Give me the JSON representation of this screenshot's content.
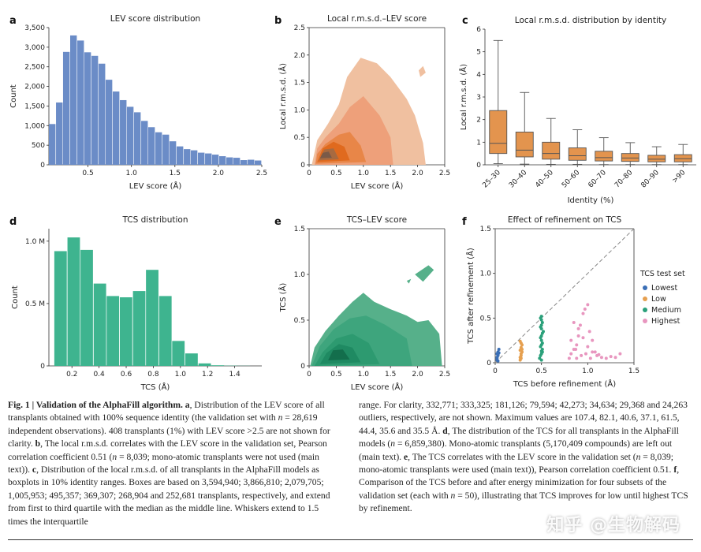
{
  "panels": {
    "a": {
      "letter": "a",
      "chart_data": {
        "type": "bar",
        "title": "LEV score distribution",
        "xlabel": "LEV score (Å)",
        "ylabel": "Count",
        "xlim": [
          0.05,
          2.5
        ],
        "ylim": [
          0,
          3500
        ],
        "xticks": [
          "0.5",
          "1.0",
          "1.5",
          "2.0",
          "2.5"
        ],
        "yticks": [
          "0",
          "500",
          "1,000",
          "1,500",
          "2,000",
          "2,500",
          "3,000",
          "3,500"
        ],
        "bin_width": 0.0816,
        "bin_starts": [
          0.05,
          0.132,
          0.213,
          0.295,
          0.377,
          0.458,
          0.54,
          0.622,
          0.703,
          0.785,
          0.867,
          0.948,
          1.03,
          1.112,
          1.193,
          1.275,
          1.357,
          1.438,
          1.52,
          1.602,
          1.683,
          1.765,
          1.847,
          1.928,
          2.01,
          2.092,
          2.173,
          2.255,
          2.337,
          2.418
        ],
        "values": [
          1040,
          1590,
          2880,
          3300,
          3170,
          2870,
          2780,
          2580,
          2170,
          1870,
          1650,
          1480,
          1340,
          1120,
          960,
          830,
          770,
          600,
          470,
          400,
          370,
          310,
          290,
          260,
          220,
          190,
          180,
          120,
          130,
          110
        ],
        "color": "#6b8cc7"
      }
    },
    "b": {
      "letter": "b",
      "chart_data": {
        "type": "heatmap",
        "title": "Local r.m.s.d.–LEV score",
        "xlabel": "LEV score (Å)",
        "ylabel": "Local r.m.s.d. (Å)",
        "xlim": [
          0,
          2.5
        ],
        "ylim": [
          0,
          2.5
        ],
        "xticks": [
          "0",
          "0.5",
          "1.0",
          "1.5",
          "2.0",
          "2.5"
        ],
        "yticks": [
          "0",
          "0.5",
          "1.0",
          "1.5",
          "2.0",
          "2.5"
        ],
        "colors": [
          "#f0c0a0",
          "#eea07a",
          "#e88648",
          "#e06a1e",
          "#a86a40",
          "#7a5a48"
        ]
      }
    },
    "c": {
      "letter": "c",
      "chart_data": {
        "type": "box",
        "title": "Local r.m.s.d. distribution by identity",
        "xlabel": "Identity (%)",
        "ylabel": "Local r.m.s.d. (Å)",
        "ylim": [
          0,
          6
        ],
        "yticks": [
          "0",
          "1",
          "2",
          "3",
          "4",
          "5",
          "6"
        ],
        "categories": [
          "25–30",
          "30–40",
          "40–50",
          "50–60",
          "60–70",
          "70–80",
          "80–90",
          ">90"
        ],
        "boxes": [
          {
            "whislo": 0.05,
            "q1": 0.5,
            "med": 0.95,
            "q3": 2.4,
            "whishi": 5.5
          },
          {
            "whislo": 0.03,
            "q1": 0.35,
            "med": 0.65,
            "q3": 1.45,
            "whishi": 3.2
          },
          {
            "whislo": 0.02,
            "q1": 0.25,
            "med": 0.5,
            "q3": 1.0,
            "whishi": 2.05
          },
          {
            "whislo": 0.02,
            "q1": 0.2,
            "med": 0.4,
            "q3": 0.75,
            "whishi": 1.55
          },
          {
            "whislo": 0.01,
            "q1": 0.17,
            "med": 0.32,
            "q3": 0.6,
            "whishi": 1.2
          },
          {
            "whislo": 0.01,
            "q1": 0.15,
            "med": 0.3,
            "q3": 0.5,
            "whishi": 0.98
          },
          {
            "whislo": 0.01,
            "q1": 0.13,
            "med": 0.25,
            "q3": 0.42,
            "whishi": 0.8
          },
          {
            "whislo": 0.01,
            "q1": 0.13,
            "med": 0.27,
            "q3": 0.45,
            "whishi": 0.9
          }
        ],
        "color": "#e3944e"
      }
    },
    "d": {
      "letter": "d",
      "chart_data": {
        "type": "bar",
        "title": "TCS distribution",
        "xlabel": "TCS (Å)",
        "ylabel": "Count",
        "xlim": [
          0.03,
          1.6
        ],
        "ylim": [
          0,
          1100000
        ],
        "xticks": [
          "0.2",
          "0.4",
          "0.6",
          "0.8",
          "1.0",
          "1.2",
          "1.4"
        ],
        "yticks": [
          "0",
          "0.5 M",
          "1.0 M"
        ],
        "bin_width": 0.0966,
        "bin_starts": [
          0.07,
          0.167,
          0.263,
          0.36,
          0.456,
          0.553,
          0.65,
          0.746,
          0.843,
          0.939,
          1.036,
          1.133,
          1.229,
          1.326,
          1.422
        ],
        "values": [
          920000,
          1030000,
          930000,
          660000,
          560000,
          550000,
          600000,
          770000,
          560000,
          200000,
          100000,
          20000,
          5000,
          2000,
          1000
        ],
        "color": "#3eb48f"
      }
    },
    "e": {
      "letter": "e",
      "chart_data": {
        "type": "heatmap",
        "title": "TCS–LEV score",
        "xlabel": "LEV score (Å)",
        "ylabel": "TCS (Å)",
        "xlim": [
          0,
          2.5
        ],
        "ylim": [
          0,
          1.5
        ],
        "xticks": [
          "0",
          "0.5",
          "1.0",
          "1.5",
          "2.0",
          "2.5"
        ],
        "yticks": [
          "0",
          "0.5",
          "1.0",
          "1.5"
        ],
        "colors": [
          "#56b08a",
          "#3ea57d",
          "#2d9a70",
          "#1f8a62",
          "#136e4c"
        ]
      }
    },
    "f": {
      "letter": "f",
      "chart_data": {
        "type": "scatter",
        "title": "Effect of refinement on TCS",
        "xlabel": "TCS before refinement (Å)",
        "ylabel": "TCS after refinement (Å)",
        "xlim": [
          0,
          1.5
        ],
        "ylim": [
          0,
          1.5
        ],
        "xticks": [
          "0",
          "0.5",
          "1.0",
          "1.5"
        ],
        "yticks": [
          "0",
          "0.5",
          "1.0",
          "1.5"
        ],
        "legend_title": "TCS test set",
        "legend_position": "right",
        "series": [
          {
            "name": "Lowest",
            "color": "#3b6fb6",
            "x": [
              0.02,
              0.02,
              0.03,
              0.03,
              0.04,
              0.02,
              0.03,
              0.04,
              0.03,
              0.02
            ],
            "y": [
              0.03,
              0.06,
              0.09,
              0.12,
              0.15,
              0.05,
              0.08,
              0.11,
              0.02,
              0.1
            ]
          },
          {
            "name": "Low",
            "color": "#e6a050",
            "x": [
              0.27,
              0.27,
              0.28,
              0.28,
              0.29,
              0.27,
              0.28,
              0.29,
              0.28,
              0.27,
              0.28,
              0.29
            ],
            "y": [
              0.03,
              0.06,
              0.08,
              0.1,
              0.12,
              0.14,
              0.17,
              0.2,
              0.22,
              0.24,
              0.05,
              0.15
            ]
          },
          {
            "name": "Medium",
            "color": "#2aa07a",
            "x": [
              0.48,
              0.49,
              0.5,
              0.5,
              0.51,
              0.49,
              0.5,
              0.51,
              0.5,
              0.49,
              0.5,
              0.51,
              0.52,
              0.5,
              0.49,
              0.5,
              0.51,
              0.5,
              0.49,
              0.5,
              0.51,
              0.5
            ],
            "y": [
              0.05,
              0.08,
              0.1,
              0.13,
              0.15,
              0.18,
              0.2,
              0.22,
              0.25,
              0.28,
              0.3,
              0.33,
              0.35,
              0.38,
              0.4,
              0.42,
              0.45,
              0.48,
              0.5,
              0.52,
              0.12,
              0.03
            ]
          },
          {
            "name": "Highest",
            "color": "#e896bf",
            "x": [
              0.8,
              0.82,
              0.85,
              0.88,
              0.9,
              0.92,
              0.95,
              0.97,
              1.0,
              1.02,
              1.05,
              1.08,
              1.1,
              1.15,
              1.2,
              1.25,
              1.3,
              1.35,
              0.85,
              0.9,
              0.95,
              1.0,
              1.05,
              0.82,
              0.88,
              0.93,
              0.98,
              1.03,
              1.12,
              0.87
            ],
            "y": [
              0.05,
              0.1,
              0.15,
              0.2,
              0.3,
              0.42,
              0.55,
              0.6,
              0.65,
              0.35,
              0.25,
              0.12,
              0.08,
              0.06,
              0.05,
              0.07,
              0.06,
              0.1,
              0.45,
              0.38,
              0.28,
              0.18,
              0.12,
              0.25,
              0.05,
              0.08,
              0.1,
              0.05,
              0.09,
              0.15
            ]
          }
        ]
      }
    }
  },
  "caption": {
    "left_html": "<b>Fig. 1 | Validation of the AlphaFill algorithm. a</b>, Distribution of the LEV score of all transplants obtained with 100% sequence identity (the validation set with <i>n</i> = 28,619 independent observations). 408 transplants (1%) with LEV score &gt;2.5 are not shown for clarity. <b>b</b>, The local r.m.s.d. correlates with the LEV score in the validation set, Pearson correlation coefficient 0.51 (<i>n</i> = 8,039; mono-atomic transplants were not used (main text)). <b>c</b>, Distribution of the local r.m.s.d. of all transplants in the AlphaFill models as boxplots in 10% identity ranges. Boxes are based on 3,594,940; 3,866,810; 2,079,705; 1,005,953; 495,357; 369,307; 268,904 and 252,681 transplants, respectively, and extend from first to third quartile with the median as the middle line. Whiskers extend to 1.5 times the interquartile",
    "right_html": "range. For clarity, 332,771; 333,325; 181,126; 79,594; 42,273; 34,634; 29,368 and 24,263 outliers, respectively, are not shown. Maximum values are 107.4, 82.1, 40.6, 37.1, 61.5, 44.4, 35.6 and 35.5 Å. <b>d</b>, The distribution of the TCS for all transplants in the AlphaFill models (<i>n</i> = 6,859,380). Mono-atomic transplants (5,170,409 compounds) are left out (main text). <b>e</b>, The TCS correlates with the LEV score in the validation set (<i>n</i> = 8,039; mono-atomic transplants were used (main text)), Pearson correlation coefficient 0.51. <b>f</b>, Comparison of the TCS before and after energy minimization for four subsets of the validation set (each with <i>n</i> = 50), illustrating that TCS improves for low until highest TCS by refinement."
  },
  "watermark": "知乎 @生物解码"
}
